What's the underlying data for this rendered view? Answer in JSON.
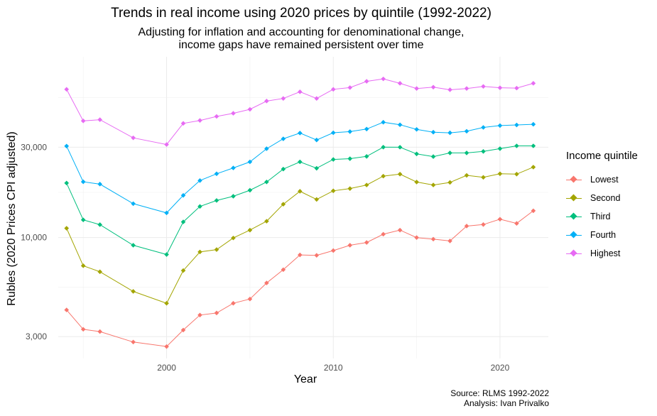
{
  "chart_data": {
    "type": "line",
    "title": "Trends in real income using 2020 prices by quintile (1992-2022)",
    "subtitle_lines": [
      "Adjusting for inflation and accounting for denominational change,",
      "income gaps have remained persistent over time"
    ],
    "xlabel": "Year",
    "ylabel": "Rubles (2020 Prices CPI adjusted)",
    "y_scale": "log",
    "xlim": [
      1993.5,
      2022.9
    ],
    "ylim": [
      2300,
      90000
    ],
    "x_ticks": [
      {
        "value": 2000,
        "label": "2000"
      },
      {
        "value": 2010,
        "label": "2010"
      },
      {
        "value": 2020,
        "label": "2020"
      }
    ],
    "y_ticks": [
      {
        "value": 3000,
        "label": "3,000"
      },
      {
        "value": 10000,
        "label": "10,000"
      },
      {
        "value": 30000,
        "label": "30,000"
      }
    ],
    "legend_title": "Income quintile",
    "legend_position": "right",
    "x": [
      1994,
      1995,
      1996,
      1998,
      2000,
      2001,
      2002,
      2003,
      2004,
      2005,
      2006,
      2007,
      2008,
      2009,
      2010,
      2011,
      2012,
      2013,
      2014,
      2015,
      2016,
      2017,
      2018,
      2019,
      2020,
      2021,
      2022
    ],
    "series": [
      {
        "name": "Lowest",
        "color": "#F8766D",
        "values": [
          4150,
          3280,
          3190,
          2810,
          2660,
          3250,
          3900,
          4000,
          4500,
          4740,
          5760,
          6770,
          8100,
          8060,
          8540,
          9110,
          9420,
          10420,
          10950,
          10000,
          9810,
          9600,
          11500,
          11720,
          12500,
          11880,
          13850
        ]
      },
      {
        "name": "Second",
        "color": "#A3A500",
        "values": [
          11200,
          7100,
          6600,
          5200,
          4500,
          6700,
          8400,
          8640,
          9950,
          10950,
          12200,
          15000,
          17550,
          15900,
          17650,
          18140,
          18940,
          21100,
          21620,
          19640,
          18950,
          19550,
          21300,
          20800,
          21720,
          21620,
          23550
        ]
      },
      {
        "name": "Third",
        "color": "#00BF7D",
        "values": [
          19400,
          12400,
          11700,
          9110,
          8140,
          12100,
          14600,
          15700,
          16520,
          17780,
          19660,
          22990,
          25100,
          23220,
          25840,
          26090,
          26820,
          30010,
          29990,
          27650,
          26760,
          27980,
          27980,
          28500,
          29460,
          30480,
          30480
        ]
      },
      {
        "name": "Fourth",
        "color": "#00B0F6",
        "values": [
          30400,
          19700,
          19150,
          15100,
          13500,
          16700,
          20000,
          21720,
          23310,
          25100,
          29450,
          33220,
          35620,
          32750,
          35750,
          36250,
          37400,
          40620,
          39400,
          37250,
          36000,
          35730,
          36410,
          38140,
          39000,
          39300,
          39630
        ]
      },
      {
        "name": "Highest",
        "color": "#E76BF3",
        "values": [
          60600,
          41300,
          41910,
          33610,
          30980,
          40070,
          41520,
          43600,
          45290,
          47530,
          52550,
          54220,
          58800,
          54220,
          60600,
          61900,
          66800,
          68800,
          65200,
          61220,
          62230,
          60280,
          61220,
          62780,
          61760,
          61500,
          65200
        ]
      }
    ]
  },
  "caption_lines": [
    "Source: RLMS 1992-2022",
    "Analysis: Ivan Privalko"
  ]
}
